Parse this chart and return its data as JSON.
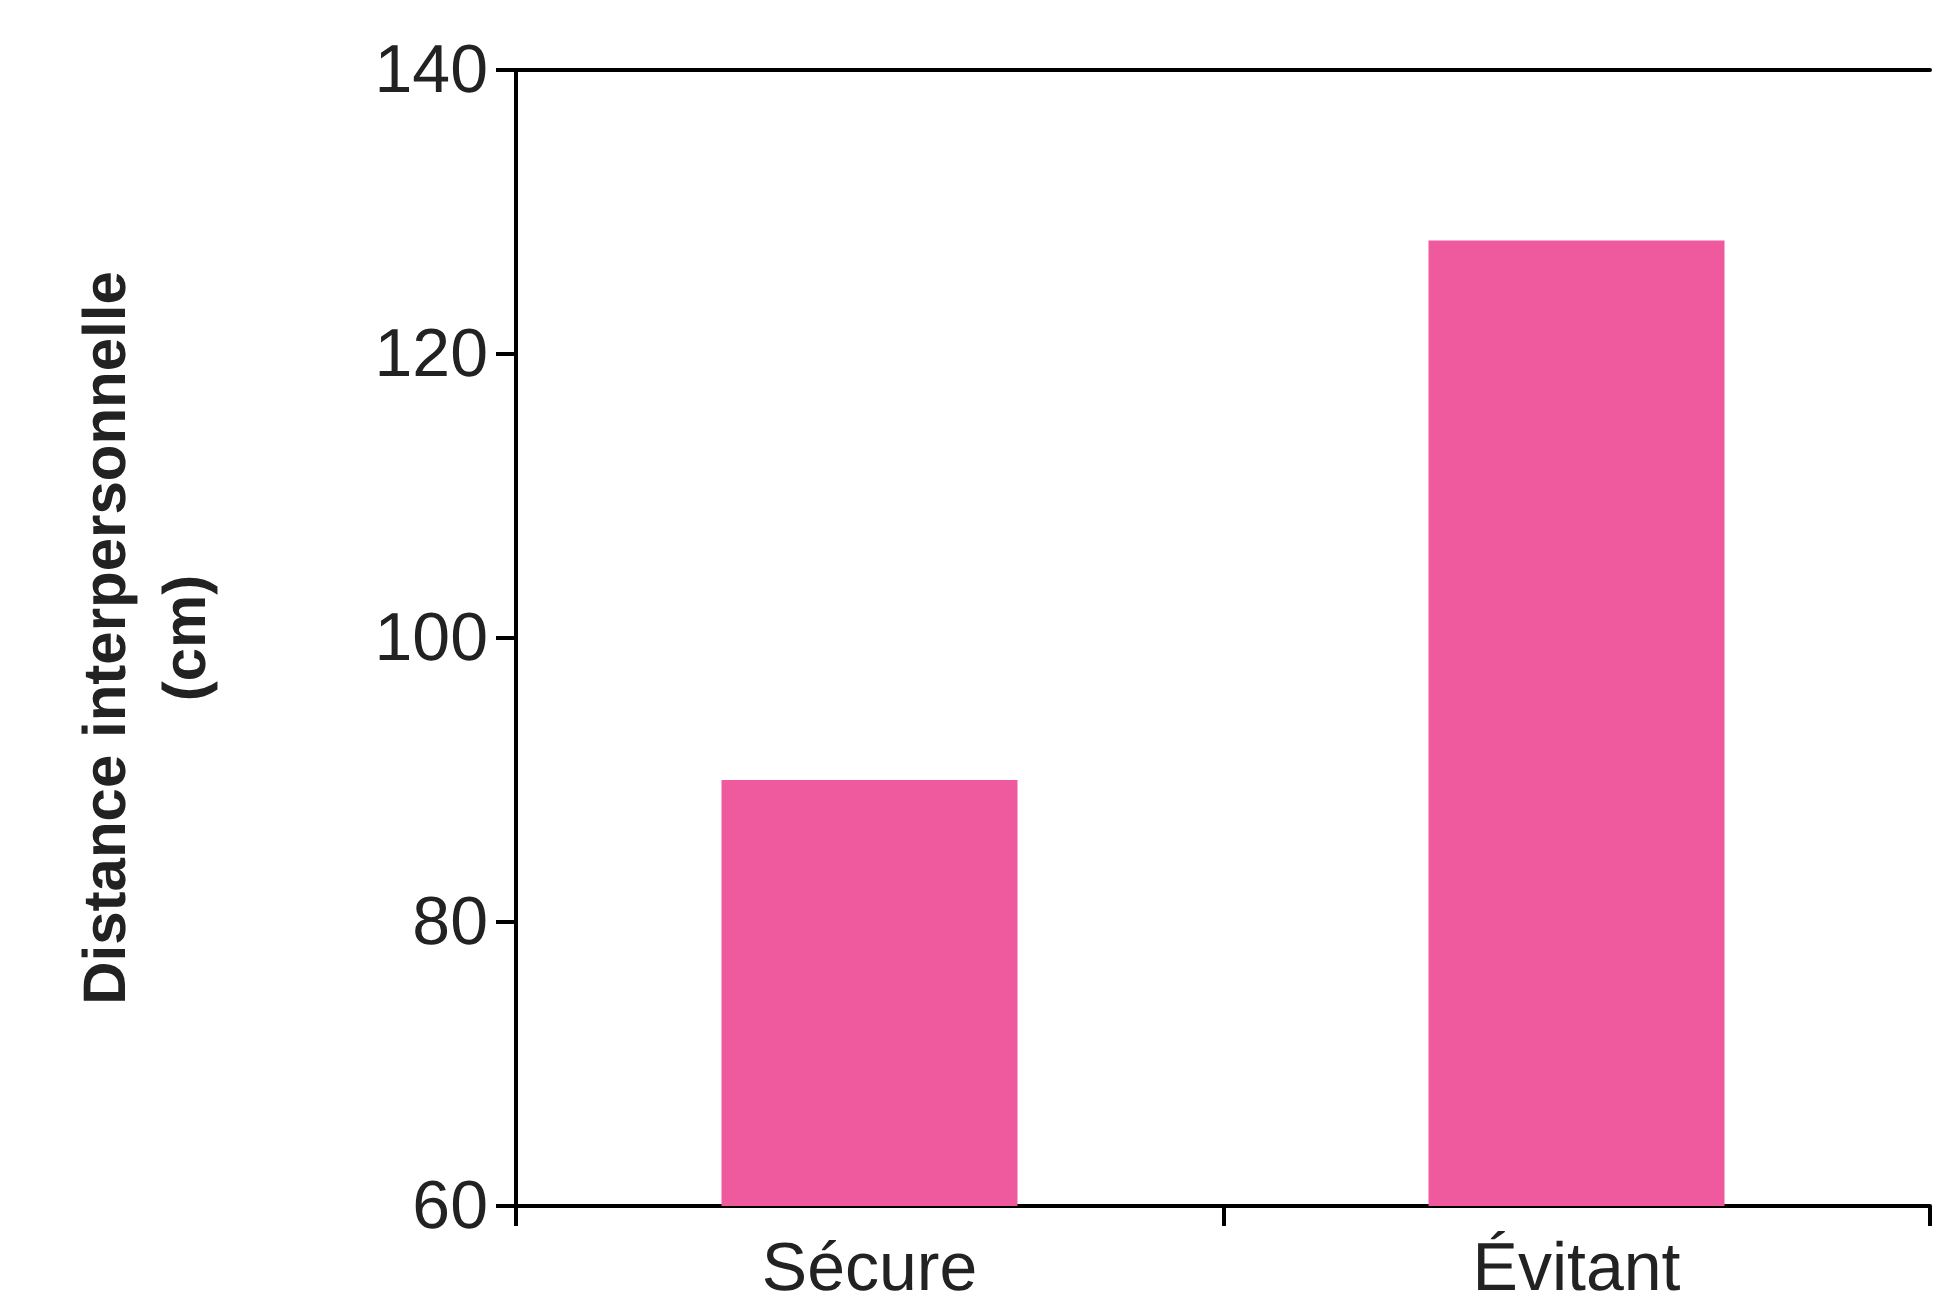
{
  "chart_data": {
    "type": "bar",
    "ylabel": "Distance interpersonnelle\n(cm)",
    "categories": [
      "Sécure",
      "Évitant"
    ],
    "values": [
      90,
      128
    ],
    "color": "#ef5a9e",
    "ylim": [
      60,
      140
    ],
    "yticks": [
      60,
      80,
      100,
      120,
      140
    ],
    "grid": false
  }
}
